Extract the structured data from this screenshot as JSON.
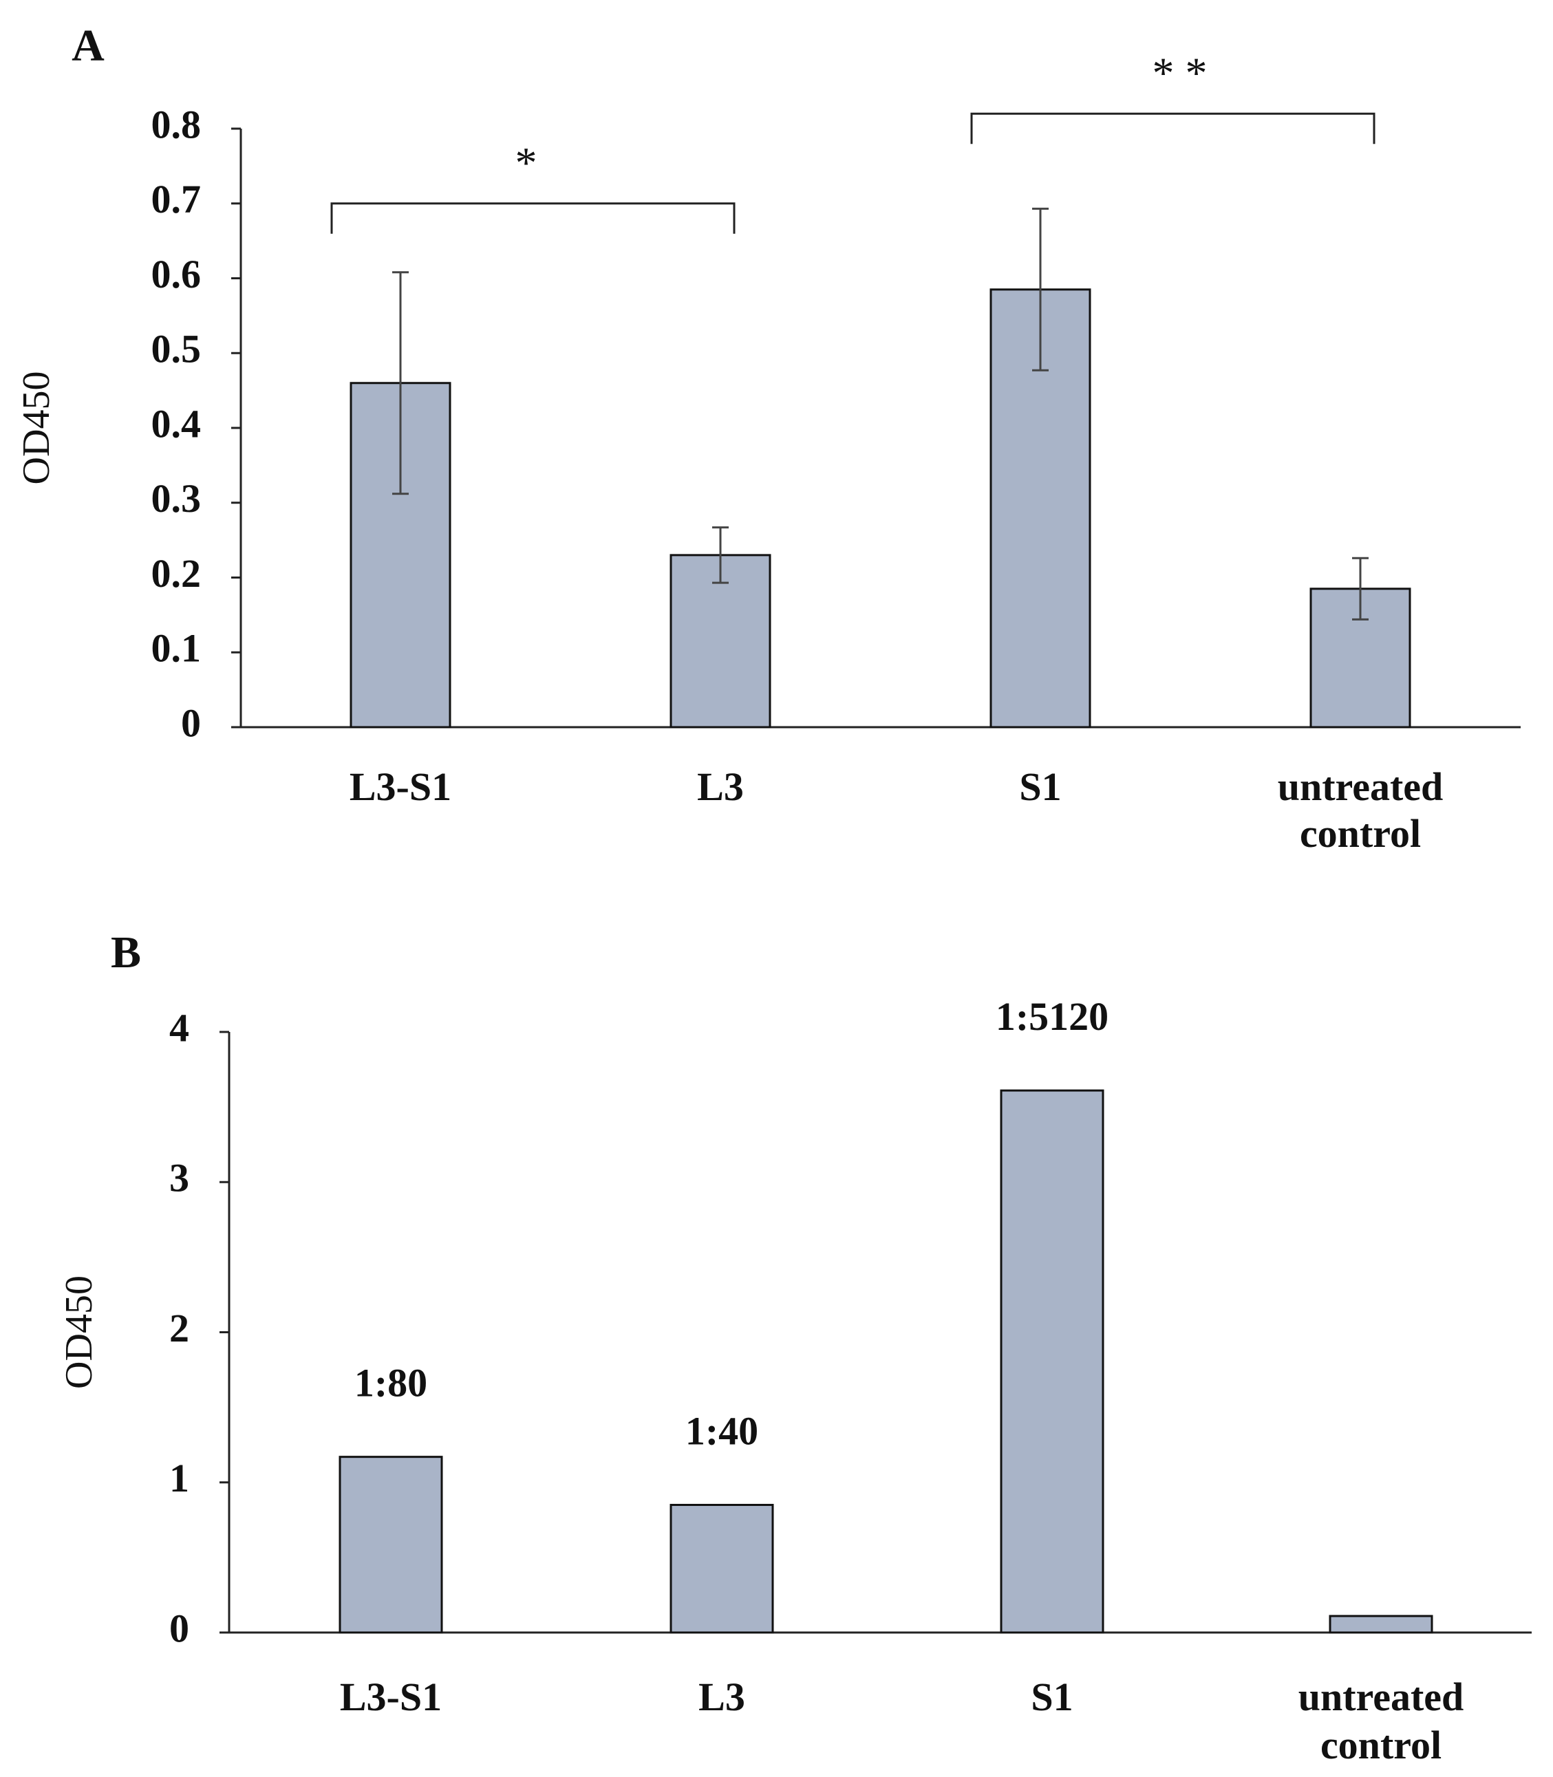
{
  "colors": {
    "bar_fill": "#a9b4c8",
    "bar_stroke": "#111111",
    "axis": "#222222",
    "error_bar": "#444444"
  },
  "chart_data": [
    {
      "panel": "A",
      "type": "bar",
      "title": "",
      "xlabel": "",
      "ylabel": "OD450",
      "ylim": [
        0,
        0.8
      ],
      "yticks": [
        "0",
        "0.1",
        "0.2",
        "0.3",
        "0.4",
        "0.5",
        "0.6",
        "0.7",
        "0.8"
      ],
      "ytick_values": [
        0,
        0.1,
        0.2,
        0.3,
        0.4,
        0.5,
        0.6,
        0.7,
        0.8
      ],
      "categories": [
        [
          "L3-S1"
        ],
        [
          "L3"
        ],
        [
          "S1"
        ],
        [
          "untreated",
          "control"
        ]
      ],
      "values": [
        0.46,
        0.23,
        0.585,
        0.185
      ],
      "error": [
        0.148,
        0.037,
        0.108,
        0.041
      ],
      "significance": [
        {
          "from": 0,
          "to": 1,
          "label": "*",
          "level": 0.7
        },
        {
          "from": 2,
          "to": 3,
          "label": "* *",
          "level": 0.82
        }
      ]
    },
    {
      "panel": "B",
      "type": "bar",
      "title": "",
      "xlabel": "",
      "ylabel": "OD450",
      "ylim": [
        0,
        4
      ],
      "yticks": [
        "0",
        "1",
        "2",
        "3",
        "4"
      ],
      "ytick_values": [
        0,
        1,
        2,
        3,
        4
      ],
      "categories": [
        [
          "L3-S1"
        ],
        [
          "L3"
        ],
        [
          "S1"
        ],
        [
          "untreated",
          "control"
        ]
      ],
      "values": [
        1.17,
        0.85,
        3.61,
        0.11
      ],
      "data_labels": [
        "1:80",
        "1:40",
        "1:5120",
        ""
      ]
    }
  ]
}
